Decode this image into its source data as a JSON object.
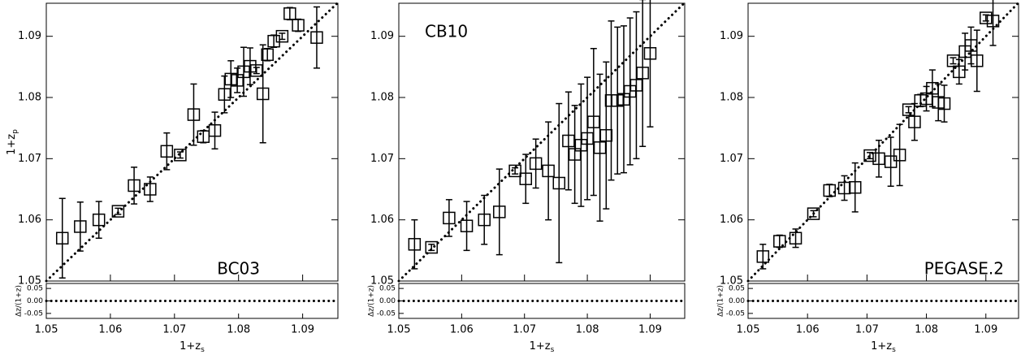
{
  "chart_data": [
    {
      "type": "scatter",
      "annotation": "BC03",
      "x": [
        1.0525,
        1.0553,
        1.0582,
        1.0612,
        1.0637,
        1.0662,
        1.0688,
        1.0709,
        1.073,
        1.0745,
        1.0763,
        1.0778,
        1.0788,
        1.0798,
        1.0808,
        1.0818,
        1.0828,
        1.0838,
        1.0845,
        1.0855,
        1.0868,
        1.088,
        1.0893,
        1.0922
      ],
      "values": [
        1.057,
        1.0589,
        1.06,
        1.0614,
        1.0656,
        1.065,
        1.0712,
        1.0706,
        1.0772,
        1.0736,
        1.0746,
        1.0805,
        1.083,
        1.0828,
        1.0842,
        1.0851,
        1.0844,
        1.0806,
        1.087,
        1.0892,
        1.09,
        1.0937,
        1.0918,
        1.0898
      ],
      "errors": [
        0.0065,
        0.004,
        0.003,
        0.0005,
        0.003,
        0.002,
        0.003,
        0.0005,
        0.005,
        0.001,
        0.003,
        0.003,
        0.003,
        0.002,
        0.004,
        0.003,
        0.0005,
        0.008,
        0.001,
        0.001,
        0.0005,
        0.001,
        0.001,
        0.005
      ],
      "xlim": [
        1.05,
        1.0955
      ],
      "ylim": [
        1.05,
        1.0954
      ],
      "xticks": [
        1.05,
        1.06,
        1.07,
        1.08,
        1.09
      ],
      "yticks": [
        1.05,
        1.06,
        1.07,
        1.08,
        1.09
      ],
      "xlabel": "1+z",
      "xlabel_sub": "s",
      "ylabel": "1+z",
      "ylabel_sub": "p",
      "residual_label": "Δz/(1+z)",
      "residual_ylim": [
        -0.07,
        0.07
      ],
      "residual_yticks": [
        0.05,
        {
          "value": 0,
          "label": "0.00"
        },
        -0.05
      ]
    },
    {
      "type": "scatter",
      "annotation": "CB10",
      "x": [
        1.0525,
        1.0552,
        1.058,
        1.0608,
        1.0636,
        1.066,
        1.0685,
        1.0702,
        1.0718,
        1.0738,
        1.0755,
        1.077,
        1.078,
        1.079,
        1.08,
        1.081,
        1.082,
        1.083,
        1.0838,
        1.0848,
        1.0858,
        1.0868,
        1.0878,
        1.0888,
        1.09
      ],
      "values": [
        1.056,
        1.0555,
        1.0603,
        1.059,
        1.06,
        1.0613,
        1.068,
        1.0667,
        1.0692,
        1.068,
        1.066,
        1.0729,
        1.0707,
        1.0722,
        1.0733,
        1.076,
        1.0718,
        1.0738,
        1.0795,
        1.0795,
        1.0797,
        1.081,
        1.082,
        1.084,
        1.0872
      ],
      "errors": [
        0.004,
        0.0005,
        0.003,
        0.004,
        0.004,
        0.007,
        0.0005,
        0.004,
        0.004,
        0.008,
        0.013,
        0.008,
        0.008,
        0.01,
        0.01,
        0.012,
        0.012,
        0.012,
        0.013,
        0.012,
        0.012,
        0.012,
        0.012,
        0.012,
        0.012
      ],
      "xlim": [
        1.05,
        1.0955
      ],
      "ylim": [
        1.05,
        1.0954
      ],
      "xticks": [
        1.05,
        1.06,
        1.07,
        1.08,
        1.09
      ],
      "yticks": [
        1.05,
        1.06,
        1.07,
        1.08,
        1.09
      ],
      "xlabel": "1+z",
      "xlabel_sub": "s",
      "residual_label": "Δz/(1+z)",
      "residual_ylim": [
        -0.07,
        0.07
      ],
      "residual_yticks": [
        0.05,
        {
          "value": 0,
          "label": "0.00"
        },
        -0.05
      ]
    },
    {
      "type": "scatter",
      "annotation": "PEGASE.2",
      "x": [
        1.0525,
        1.0553,
        1.058,
        1.061,
        1.0637,
        1.0662,
        1.068,
        1.0705,
        1.072,
        1.074,
        1.0755,
        1.077,
        1.078,
        1.079,
        1.08,
        1.081,
        1.082,
        1.083,
        1.0845,
        1.0855,
        1.0865,
        1.0875,
        1.0885,
        1.09,
        1.0912
      ],
      "values": [
        1.054,
        1.0565,
        1.057,
        1.061,
        1.0648,
        1.0652,
        1.0653,
        1.0705,
        1.07,
        1.0695,
        1.0706,
        1.078,
        1.076,
        1.0795,
        1.0798,
        1.0815,
        1.0792,
        1.079,
        1.086,
        1.0842,
        1.0875,
        1.0885,
        1.086,
        1.093,
        1.0925
      ],
      "errors": [
        0.002,
        0.001,
        0.0015,
        0.0005,
        0.001,
        0.002,
        0.004,
        0.0005,
        0.003,
        0.004,
        0.005,
        0.0005,
        0.003,
        0.001,
        0.002,
        0.003,
        0.003,
        0.003,
        0.0005,
        0.002,
        0.003,
        0.003,
        0.005,
        0.0005,
        0.004
      ],
      "xlim": [
        1.05,
        1.0955
      ],
      "ylim": [
        1.05,
        1.0954
      ],
      "xticks": [
        1.05,
        1.06,
        1.07,
        1.08,
        1.09
      ],
      "yticks": [
        1.05,
        1.06,
        1.07,
        1.08,
        1.09
      ],
      "xlabel": "1+z",
      "xlabel_sub": "s",
      "residual_label": "Δz/(1+z)",
      "residual_ylim": [
        -0.07,
        0.07
      ],
      "residual_yticks": [
        0.05,
        {
          "value": 0,
          "label": "0.00"
        },
        -0.05
      ]
    }
  ]
}
